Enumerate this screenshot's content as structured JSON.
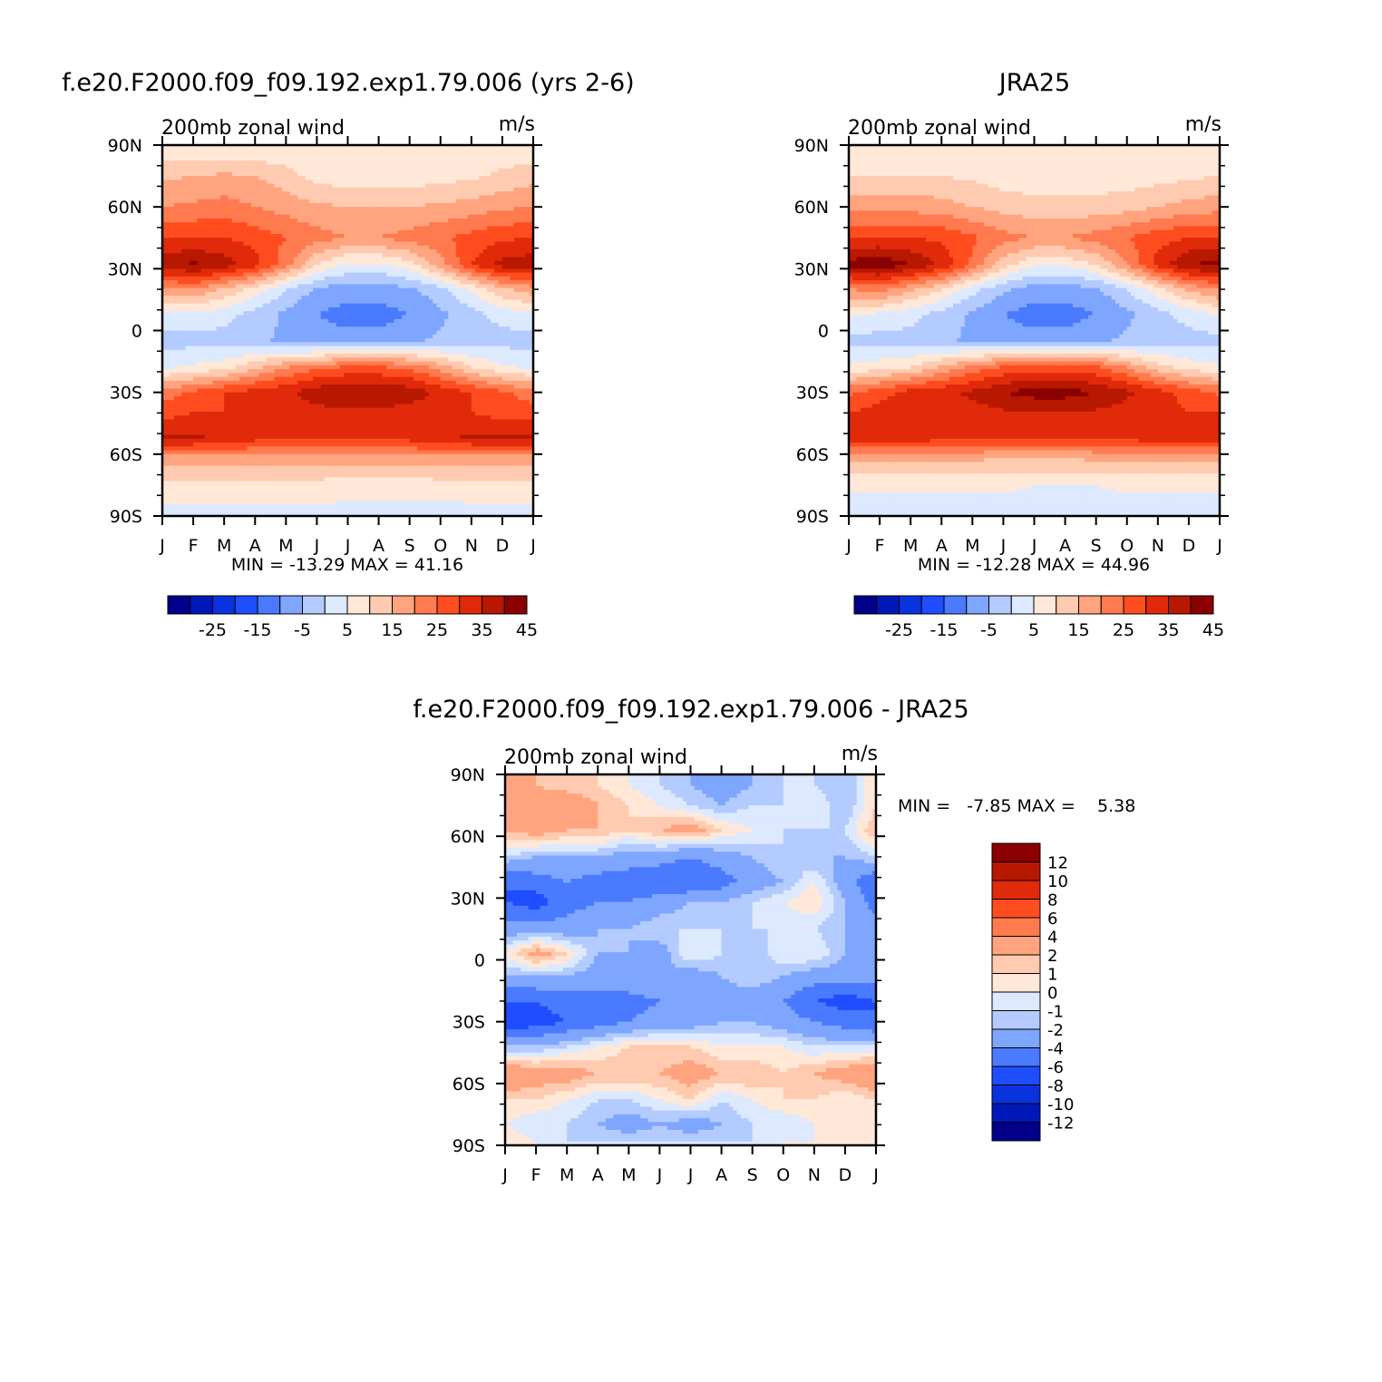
{
  "colors": {
    "palette16": [
      "#00008b",
      "#0018b8",
      "#0a33e0",
      "#1f4dff",
      "#4a7aff",
      "#7fa6ff",
      "#b3cbff",
      "#dde9ff",
      "#ffe8d8",
      "#ffcbb0",
      "#ffa47f",
      "#ff7a4f",
      "#ff4d1f",
      "#e02a0a",
      "#b81800",
      "#8b0000"
    ],
    "diff_palette": [
      "#00008b",
      "#0018b8",
      "#0a33e0",
      "#1f4dff",
      "#4a7aff",
      "#7fa6ff",
      "#b3cbff",
      "#dde9ff",
      "#ffe8d8",
      "#ffcbb0",
      "#ffa47f",
      "#ff7a4f",
      "#ff4d1f",
      "#e02a0a",
      "#b81800",
      "#8b0000"
    ]
  },
  "panels": [
    {
      "title": "f.e20.F2000.f09_f09.192.exp1.79.006 (yrs 2-6)",
      "subtitle_left": "200mb zonal wind",
      "subtitle_right": "m/s",
      "minmax": "MIN = -13.29 MAX = 41.16"
    },
    {
      "title": "JRA25",
      "subtitle_left": "200mb zonal wind",
      "subtitle_right": "m/s",
      "minmax": "MIN = -12.28 MAX = 44.96"
    },
    {
      "title": "f.e20.F2000.f09_f09.192.exp1.79.006 - JRA25",
      "subtitle_left": "200mb zonal wind",
      "subtitle_right": "m/s",
      "minmax": "MIN =   -7.85 MAX =    5.38"
    }
  ],
  "chart_data": [
    {
      "type": "heatmap",
      "title": "f.e20.F2000.f09_f09.192.exp1.79.006 (yrs 2-6)",
      "variable": "200mb zonal wind",
      "units": "m/s",
      "x_ticks": [
        "J",
        "F",
        "M",
        "A",
        "M",
        "J",
        "J",
        "A",
        "S",
        "O",
        "N",
        "D",
        "J"
      ],
      "y_ticks": [
        "90N",
        "60N",
        "30N",
        "0",
        "30S",
        "60S",
        "90S"
      ],
      "xlim": [
        0,
        12
      ],
      "ylim": [
        -90,
        90
      ],
      "min": -13.29,
      "max": 41.16,
      "colorbar_labels": [
        "-25",
        "-15",
        "-5",
        "5",
        "15",
        "25",
        "35",
        "45"
      ],
      "latitudes": [
        85,
        75,
        60,
        45,
        32,
        20,
        8,
        -5,
        -18,
        -30,
        -40,
        -52,
        -62,
        -75,
        -87
      ],
      "months": [
        0,
        1,
        2,
        3,
        4,
        5,
        6,
        7,
        8,
        9,
        10,
        11,
        12
      ],
      "values": [
        [
          8,
          8,
          8,
          8,
          8,
          6,
          6,
          6,
          6,
          6,
          7,
          8,
          8
        ],
        [
          14,
          15,
          16,
          15,
          12,
          8,
          7,
          7,
          7,
          8,
          9,
          11,
          13
        ],
        [
          20,
          21,
          22,
          20,
          18,
          16,
          15,
          15,
          15,
          16,
          17,
          19,
          20
        ],
        [
          30,
          30,
          30,
          28,
          25,
          22,
          20,
          20,
          22,
          24,
          27,
          29,
          30
        ],
        [
          38,
          41,
          38,
          32,
          22,
          10,
          4,
          4,
          8,
          18,
          30,
          37,
          38
        ],
        [
          18,
          20,
          14,
          8,
          0,
          -6,
          -8,
          -8,
          -6,
          -2,
          6,
          14,
          18
        ],
        [
          4,
          4,
          2,
          -2,
          -6,
          -10,
          -12,
          -12,
          -10,
          -6,
          -2,
          2,
          4
        ],
        [
          -2,
          -2,
          -2,
          -4,
          -6,
          -8,
          -8,
          -8,
          -6,
          -4,
          -2,
          -2,
          -2
        ],
        [
          4,
          6,
          8,
          14,
          20,
          24,
          26,
          26,
          24,
          18,
          10,
          6,
          4
        ],
        [
          22,
          26,
          30,
          32,
          34,
          38,
          40,
          40,
          38,
          34,
          30,
          26,
          22
        ],
        [
          28,
          30,
          30,
          30,
          32,
          33,
          34,
          34,
          32,
          32,
          30,
          28,
          28
        ],
        [
          36,
          36,
          34,
          32,
          30,
          30,
          30,
          30,
          32,
          34,
          36,
          36,
          36
        ],
        [
          18,
          18,
          18,
          18,
          18,
          18,
          18,
          18,
          18,
          18,
          18,
          18,
          18
        ],
        [
          8,
          8,
          8,
          8,
          8,
          8,
          7,
          7,
          7,
          8,
          8,
          8,
          8
        ],
        [
          4,
          4,
          4,
          4,
          4,
          4,
          4,
          4,
          4,
          3,
          4,
          4,
          4
        ]
      ]
    },
    {
      "type": "heatmap",
      "title": "JRA25",
      "variable": "200mb zonal wind",
      "units": "m/s",
      "x_ticks": [
        "J",
        "F",
        "M",
        "A",
        "M",
        "J",
        "J",
        "A",
        "S",
        "O",
        "N",
        "D",
        "J"
      ],
      "y_ticks": [
        "90N",
        "60N",
        "30N",
        "0",
        "30S",
        "60S",
        "90S"
      ],
      "xlim": [
        0,
        12
      ],
      "ylim": [
        -90,
        90
      ],
      "min": -12.28,
      "max": 44.96,
      "colorbar_labels": [
        "-25",
        "-15",
        "-5",
        "5",
        "15",
        "25",
        "35",
        "45"
      ],
      "latitudes": [
        85,
        75,
        60,
        45,
        32,
        20,
        8,
        -5,
        -18,
        -30,
        -40,
        -52,
        -62,
        -75,
        -87
      ],
      "months": [
        0,
        1,
        2,
        3,
        4,
        5,
        6,
        7,
        8,
        9,
        10,
        11,
        12
      ],
      "values": [
        [
          6,
          6,
          6,
          6,
          6,
          5,
          5,
          5,
          5,
          5,
          6,
          6,
          6
        ],
        [
          10,
          10,
          10,
          10,
          9,
          7,
          7,
          7,
          7,
          7,
          8,
          9,
          10
        ],
        [
          18,
          18,
          18,
          17,
          15,
          13,
          12,
          12,
          12,
          13,
          15,
          17,
          18
        ],
        [
          30,
          30,
          30,
          29,
          26,
          22,
          20,
          20,
          22,
          25,
          28,
          30,
          30
        ],
        [
          42,
          44,
          40,
          34,
          24,
          12,
          6,
          6,
          10,
          20,
          32,
          40,
          42
        ],
        [
          20,
          22,
          16,
          10,
          2,
          -4,
          -8,
          -8,
          -6,
          0,
          8,
          16,
          20
        ],
        [
          6,
          4,
          2,
          -2,
          -6,
          -10,
          -12,
          -12,
          -10,
          -6,
          -2,
          2,
          6
        ],
        [
          -2,
          -2,
          -2,
          -4,
          -6,
          -8,
          -8,
          -8,
          -6,
          -4,
          -2,
          -2,
          -2
        ],
        [
          6,
          8,
          10,
          16,
          22,
          26,
          28,
          28,
          26,
          20,
          12,
          8,
          6
        ],
        [
          24,
          28,
          32,
          34,
          36,
          40,
          42,
          42,
          40,
          36,
          32,
          28,
          24
        ],
        [
          30,
          32,
          32,
          32,
          33,
          34,
          35,
          35,
          34,
          33,
          32,
          30,
          30
        ],
        [
          34,
          34,
          33,
          32,
          31,
          30,
          30,
          30,
          30,
          32,
          33,
          34,
          34
        ],
        [
          16,
          16,
          16,
          16,
          16,
          15,
          15,
          15,
          16,
          16,
          16,
          16,
          16
        ],
        [
          6,
          6,
          6,
          6,
          6,
          6,
          5,
          5,
          5,
          6,
          6,
          6,
          6
        ],
        [
          3,
          3,
          3,
          3,
          3,
          3,
          3,
          3,
          3,
          3,
          3,
          3,
          3
        ]
      ]
    },
    {
      "type": "heatmap",
      "title": "f.e20.F2000.f09_f09.192.exp1.79.006 - JRA25",
      "variable": "200mb zonal wind",
      "units": "m/s",
      "x_ticks": [
        "J",
        "F",
        "M",
        "A",
        "M",
        "J",
        "J",
        "A",
        "S",
        "O",
        "N",
        "D",
        "J"
      ],
      "y_ticks": [
        "90N",
        "60N",
        "30N",
        "0",
        "30S",
        "60S",
        "90S"
      ],
      "xlim": [
        0,
        12
      ],
      "ylim": [
        -90,
        90
      ],
      "min": -7.85,
      "max": 5.38,
      "colorbar_labels": [
        "12",
        "10",
        "8",
        "6",
        "4",
        "2",
        "1",
        "0",
        "-1",
        "-2",
        "-4",
        "-6",
        "-8",
        "-10",
        "-12"
      ],
      "latitudes": [
        85,
        75,
        63,
        50,
        38,
        28,
        15,
        3,
        -8,
        -20,
        -30,
        -42,
        -55,
        -68,
        -80,
        -88
      ],
      "months": [
        0,
        1,
        2,
        3,
        4,
        5,
        6,
        7,
        8,
        9,
        10,
        11,
        12
      ],
      "values": [
        [
          2,
          2,
          1,
          1,
          0,
          -1,
          -2,
          -3,
          -2,
          -1,
          -1,
          -2,
          1
        ],
        [
          3,
          3,
          4,
          2,
          1,
          0,
          -1,
          -2,
          -1,
          -1,
          0,
          -2,
          1
        ],
        [
          2,
          3,
          2,
          2,
          1,
          2,
          3,
          1,
          0,
          -1,
          -1,
          -1,
          2
        ],
        [
          -1,
          -2,
          -2,
          -2,
          -3,
          -3,
          -4,
          -3,
          -2,
          -1,
          -2,
          -2,
          -1
        ],
        [
          -6,
          -5,
          -4,
          -5,
          -5,
          -6,
          -6,
          -5,
          -3,
          -2,
          0,
          -3,
          -6
        ],
        [
          -6,
          -7,
          -5,
          -4,
          -4,
          -3,
          -2,
          -2,
          -1,
          0,
          1,
          -2,
          -5
        ],
        [
          -3,
          -3,
          -3,
          -2,
          -2,
          -1,
          -1,
          -1,
          -1,
          -1,
          -1,
          -2,
          -3
        ],
        [
          0,
          3,
          1,
          -2,
          -2,
          -3,
          0,
          -1,
          -2,
          0,
          0,
          -2,
          -3
        ],
        [
          -2,
          -2,
          -2,
          -3,
          -2,
          -2,
          -3,
          -2,
          -1,
          -2,
          -3,
          -3,
          -3
        ],
        [
          -6,
          -6,
          -5,
          -5,
          -5,
          -4,
          -4,
          -3,
          -3,
          -4,
          -6,
          -7,
          -6
        ],
        [
          -8,
          -7,
          -6,
          -5,
          -4,
          -3,
          -3,
          -2,
          -2,
          -3,
          -4,
          -5,
          -6
        ],
        [
          -2,
          -2,
          -1,
          0,
          1,
          1,
          1,
          0,
          0,
          0,
          -1,
          -1,
          -1
        ],
        [
          4,
          3,
          3,
          2,
          2,
          2,
          3,
          2,
          2,
          1,
          2,
          3,
          4
        ],
        [
          1,
          1,
          0,
          -1,
          -1,
          0,
          1,
          -1,
          0,
          1,
          1,
          0,
          1
        ],
        [
          0,
          -1,
          -1,
          -2,
          -3,
          -2,
          -3,
          -2,
          -1,
          -1,
          0,
          0,
          1
        ],
        [
          1,
          0,
          -1,
          -1,
          -1,
          -1,
          -1,
          -1,
          -1,
          0,
          0,
          0,
          1
        ]
      ]
    }
  ]
}
